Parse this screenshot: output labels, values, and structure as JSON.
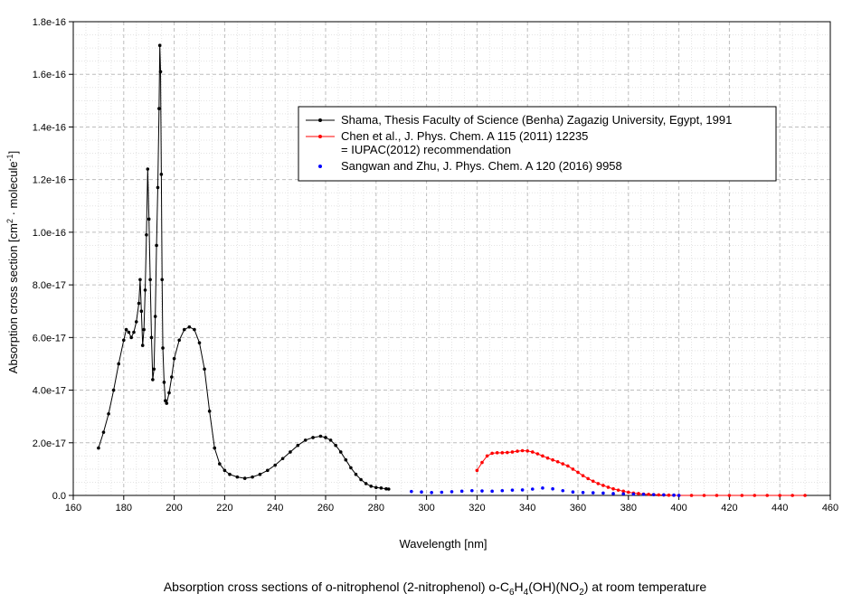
{
  "chart_data": {
    "type": "line",
    "title": "",
    "xlabel": "Wavelength [nm]",
    "ylabel_parts": [
      "Absorption cross section [cm",
      "2",
      " · molecule",
      "-1",
      "]"
    ],
    "xlim": [
      160,
      460
    ],
    "ylim": [
      0,
      1.8e-16
    ],
    "x_ticks": [
      160,
      180,
      200,
      220,
      240,
      260,
      280,
      300,
      320,
      340,
      360,
      380,
      400,
      420,
      440,
      460
    ],
    "y_ticks": [
      0,
      2e-17,
      4e-17,
      6e-17,
      8e-17,
      1e-16,
      1.2e-16,
      1.4e-16,
      1.6e-16,
      1.8e-16
    ],
    "y_tick_labels": [
      "0.0",
      "2.0e-17",
      "4.0e-17",
      "6.0e-17",
      "8.0e-17",
      "1.0e-16",
      "1.2e-16",
      "1.4e-16",
      "1.6e-16",
      "1.8e-16"
    ],
    "grid": true,
    "legend_position": "top-right",
    "series": [
      {
        "name": "Shama, Thesis Faculty of Science (Benha) Zagazig University, Egypt, 1991",
        "color": "#000000",
        "style": "line-markers",
        "x": [
          170,
          172,
          174,
          176,
          178,
          180,
          181,
          182,
          183,
          184,
          185,
          186,
          186.5,
          187,
          187.5,
          188,
          188.5,
          189,
          189.5,
          190,
          190.5,
          191,
          191.5,
          192,
          192.5,
          193,
          193.5,
          194,
          194.3,
          194.6,
          194.9,
          195.2,
          195.5,
          196,
          196.5,
          197,
          198,
          199,
          200,
          202,
          204,
          206,
          208,
          210,
          212,
          214,
          216,
          218,
          220,
          222,
          225,
          228,
          231,
          234,
          237,
          240,
          243,
          246,
          249,
          252,
          255,
          258,
          260,
          262,
          264,
          266,
          268,
          270,
          272,
          274,
          276,
          278,
          280,
          282,
          284,
          285
        ],
        "y": [
          1.8e-17,
          2.4e-17,
          3.1e-17,
          4e-17,
          5e-17,
          5.9e-17,
          6.3e-17,
          6.2e-17,
          6e-17,
          6.2e-17,
          6.6e-17,
          7.3e-17,
          8.2e-17,
          7e-17,
          5.7e-17,
          6.3e-17,
          7.8e-17,
          9.9e-17,
          1.24e-16,
          1.05e-16,
          8.2e-17,
          6e-17,
          4.4e-17,
          4.8e-17,
          6.8e-17,
          9.5e-17,
          1.17e-16,
          1.47e-16,
          1.71e-16,
          1.61e-16,
          1.22e-16,
          8.2e-17,
          5.6e-17,
          4.3e-17,
          3.6e-17,
          3.5e-17,
          3.9e-17,
          4.5e-17,
          5.2e-17,
          5.9e-17,
          6.3e-17,
          6.4e-17,
          6.3e-17,
          5.8e-17,
          4.8e-17,
          3.2e-17,
          1.8e-17,
          1.2e-17,
          9.5e-18,
          8e-18,
          7e-18,
          6.5e-18,
          7e-18,
          8e-18,
          9.5e-18,
          1.15e-17,
          1.4e-17,
          1.65e-17,
          1.9e-17,
          2.1e-17,
          2.2e-17,
          2.25e-17,
          2.2e-17,
          2.1e-17,
          1.9e-17,
          1.65e-17,
          1.35e-17,
          1.05e-17,
          8e-18,
          6e-18,
          4.5e-18,
          3.5e-18,
          3e-18,
          2.8e-18,
          2.5e-18,
          2.4e-18
        ]
      },
      {
        "name": "Chen et al., J. Phys. Chem. A 115 (2011) 12235",
        "name_line2": "= IUPAC(2012) recommendation",
        "color": "#ff0000",
        "style": "line-markers",
        "x": [
          320,
          322,
          324,
          326,
          328,
          330,
          332,
          334,
          336,
          338,
          340,
          342,
          344,
          346,
          348,
          350,
          352,
          354,
          356,
          358,
          360,
          362,
          364,
          366,
          368,
          370,
          372,
          374,
          376,
          378,
          380,
          382,
          384,
          386,
          388,
          390,
          392,
          394,
          396,
          398,
          400,
          405,
          410,
          415,
          420,
          425,
          430,
          435,
          440,
          445,
          450
        ],
        "y": [
          9.5e-18,
          1.25e-17,
          1.5e-17,
          1.6e-17,
          1.62e-17,
          1.62e-17,
          1.63e-17,
          1.65e-17,
          1.68e-17,
          1.7e-17,
          1.69e-17,
          1.65e-17,
          1.58e-17,
          1.5e-17,
          1.42e-17,
          1.35e-17,
          1.28e-17,
          1.2e-17,
          1.12e-17,
          1e-17,
          8.8e-18,
          7.5e-18,
          6.4e-18,
          5.4e-18,
          4.5e-18,
          3.8e-18,
          3.1e-18,
          2.5e-18,
          2e-18,
          1.6e-18,
          1.2e-18,
          9e-19,
          7e-19,
          5e-19,
          4e-19,
          3e-19,
          2e-19,
          1.5e-19,
          1e-19,
          5e-20,
          0,
          0,
          0,
          0,
          0,
          0,
          0,
          0,
          0,
          0,
          0
        ]
      },
      {
        "name": "Sangwan and Zhu, J. Phys. Chem. A 120 (2016) 9958",
        "color": "#0000ff",
        "style": "markers",
        "x": [
          294,
          298,
          302,
          306,
          310,
          314,
          318,
          322,
          326,
          330,
          334,
          338,
          342,
          346,
          350,
          354,
          358,
          362,
          366,
          370,
          374,
          378,
          382,
          386,
          390,
          394,
          398,
          400
        ],
        "y": [
          1.5e-18,
          1.3e-18,
          1.1e-18,
          1.2e-18,
          1.4e-18,
          1.6e-18,
          1.8e-18,
          1.7e-18,
          1.6e-18,
          1.8e-18,
          2e-18,
          2.1e-18,
          2.4e-18,
          2.8e-18,
          2.5e-18,
          1.8e-18,
          1.3e-18,
          1.1e-18,
          1e-18,
          9e-19,
          7e-19,
          6e-19,
          5e-19,
          4e-19,
          3e-19,
          2e-19,
          1e-19,
          0
        ]
      }
    ]
  },
  "caption_parts": [
    "Absorption cross sections of o-nitrophenol (2-nitrophenol) o-C",
    "6",
    "H",
    "4",
    "(OH)(NO",
    "2",
    ") at room temperature"
  ]
}
